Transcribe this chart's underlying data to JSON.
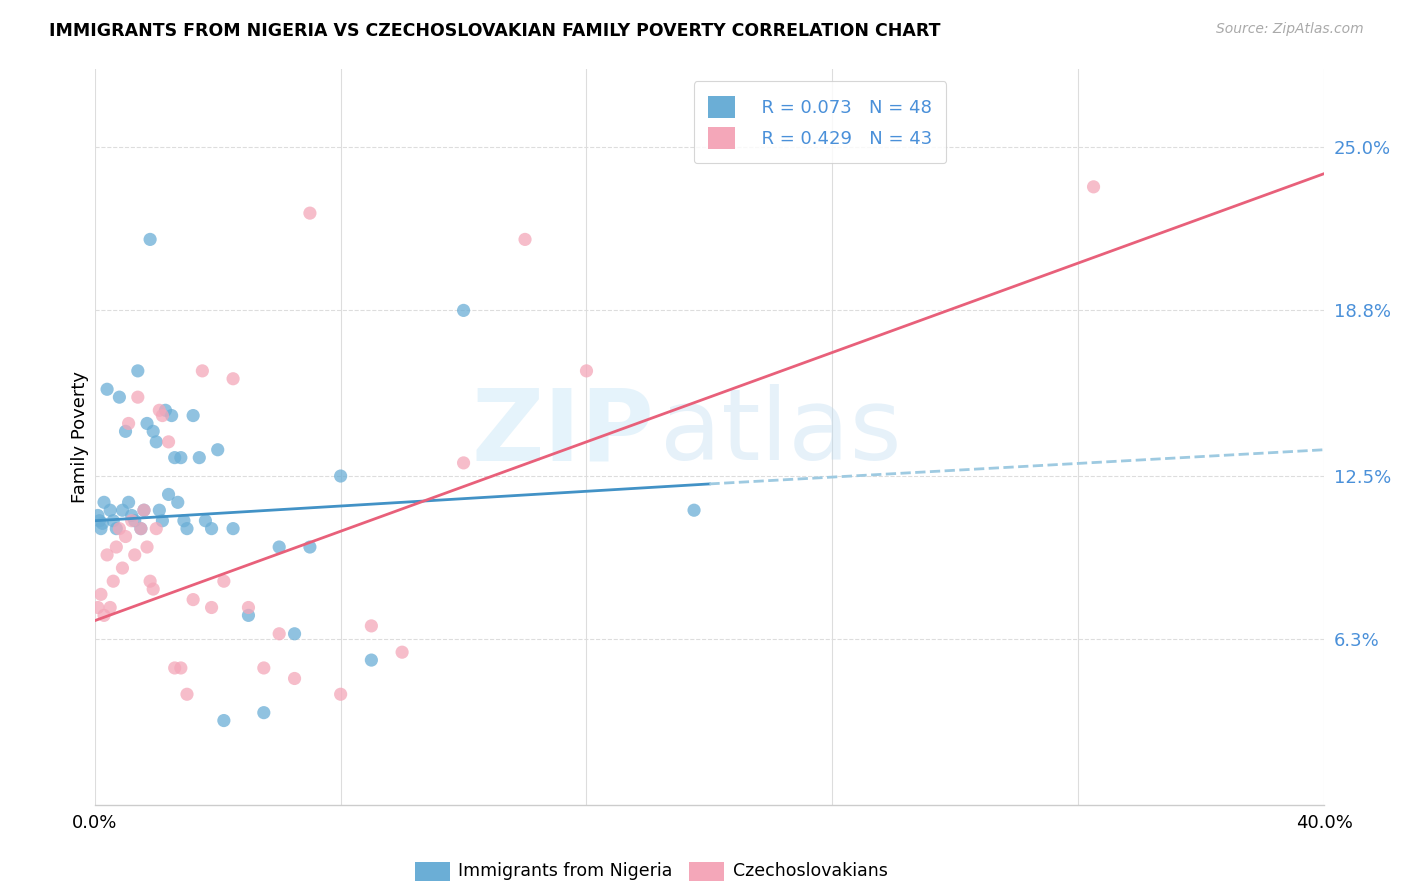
{
  "title": "IMMIGRANTS FROM NIGERIA VS CZECHOSLOVAKIAN FAMILY POVERTY CORRELATION CHART",
  "source": "Source: ZipAtlas.com",
  "ylabel": "Family Poverty",
  "ytick_values": [
    6.3,
    12.5,
    18.8,
    25.0
  ],
  "legend_label1": "Immigrants from Nigeria",
  "legend_label2": "Czechoslovakians",
  "legend_r1": "R = 0.073",
  "legend_n1": "N = 48",
  "legend_r2": "R = 0.429",
  "legend_n2": "N = 43",
  "color_nigeria": "#6baed6",
  "color_czech": "#f4a7b9",
  "color_nigeria_line": "#4292c6",
  "color_czech_line": "#e8607a",
  "color_nigeria_dashed": "#9ecae1",
  "watermark_zip": "ZIP",
  "watermark_atlas": "atlas",
  "nigeria_x": [
    0.1,
    0.15,
    0.2,
    0.25,
    0.3,
    0.4,
    0.5,
    0.6,
    0.7,
    0.8,
    0.9,
    1.0,
    1.1,
    1.2,
    1.3,
    1.4,
    1.5,
    1.6,
    1.7,
    1.8,
    1.9,
    2.0,
    2.1,
    2.2,
    2.3,
    2.4,
    2.5,
    2.6,
    2.7,
    2.8,
    2.9,
    3.0,
    3.2,
    3.4,
    3.6,
    3.8,
    4.0,
    4.2,
    4.5,
    5.0,
    5.5,
    6.0,
    6.5,
    7.0,
    8.0,
    9.0,
    12.0,
    19.5
  ],
  "nigeria_y": [
    11.0,
    10.8,
    10.5,
    10.7,
    11.5,
    15.8,
    11.2,
    10.8,
    10.5,
    15.5,
    11.2,
    14.2,
    11.5,
    11.0,
    10.8,
    16.5,
    10.5,
    11.2,
    14.5,
    21.5,
    14.2,
    13.8,
    11.2,
    10.8,
    15.0,
    11.8,
    14.8,
    13.2,
    11.5,
    13.2,
    10.8,
    10.5,
    14.8,
    13.2,
    10.8,
    10.5,
    13.5,
    3.2,
    10.5,
    7.2,
    3.5,
    9.8,
    6.5,
    9.8,
    12.5,
    5.5,
    18.8,
    11.2
  ],
  "czech_x": [
    0.1,
    0.2,
    0.3,
    0.4,
    0.5,
    0.6,
    0.7,
    0.8,
    0.9,
    1.0,
    1.1,
    1.2,
    1.3,
    1.4,
    1.5,
    1.6,
    1.7,
    1.8,
    1.9,
    2.0,
    2.1,
    2.2,
    2.4,
    2.6,
    2.8,
    3.0,
    3.2,
    3.5,
    3.8,
    4.2,
    4.5,
    5.0,
    5.5,
    6.0,
    6.5,
    7.0,
    8.0,
    9.0,
    10.0,
    12.0,
    14.0,
    16.0,
    32.5
  ],
  "czech_y": [
    7.5,
    8.0,
    7.2,
    9.5,
    7.5,
    8.5,
    9.8,
    10.5,
    9.0,
    10.2,
    14.5,
    10.8,
    9.5,
    15.5,
    10.5,
    11.2,
    9.8,
    8.5,
    8.2,
    10.5,
    15.0,
    14.8,
    13.8,
    5.2,
    5.2,
    4.2,
    7.8,
    16.5,
    7.5,
    8.5,
    16.2,
    7.5,
    5.2,
    6.5,
    4.8,
    22.5,
    4.2,
    6.8,
    5.8,
    13.0,
    21.5,
    16.5,
    23.5
  ],
  "xmin": 0.0,
  "xmax": 40.0,
  "ymin": 0.0,
  "ymax": 28.0,
  "nig_line_x0": 0.0,
  "nig_line_x1": 20.0,
  "nig_line_y0": 10.8,
  "nig_line_y1": 12.2,
  "nig_dash_x0": 20.0,
  "nig_dash_x1": 40.0,
  "nig_dash_y0": 12.2,
  "nig_dash_y1": 13.5,
  "czk_line_x0": 0.0,
  "czk_line_x1": 40.0,
  "czk_line_y0": 7.0,
  "czk_line_y1": 24.0,
  "background_color": "#ffffff",
  "grid_color": "#dddddd",
  "xtick_grid_positions": [
    0,
    8,
    16,
    24,
    32,
    40
  ]
}
